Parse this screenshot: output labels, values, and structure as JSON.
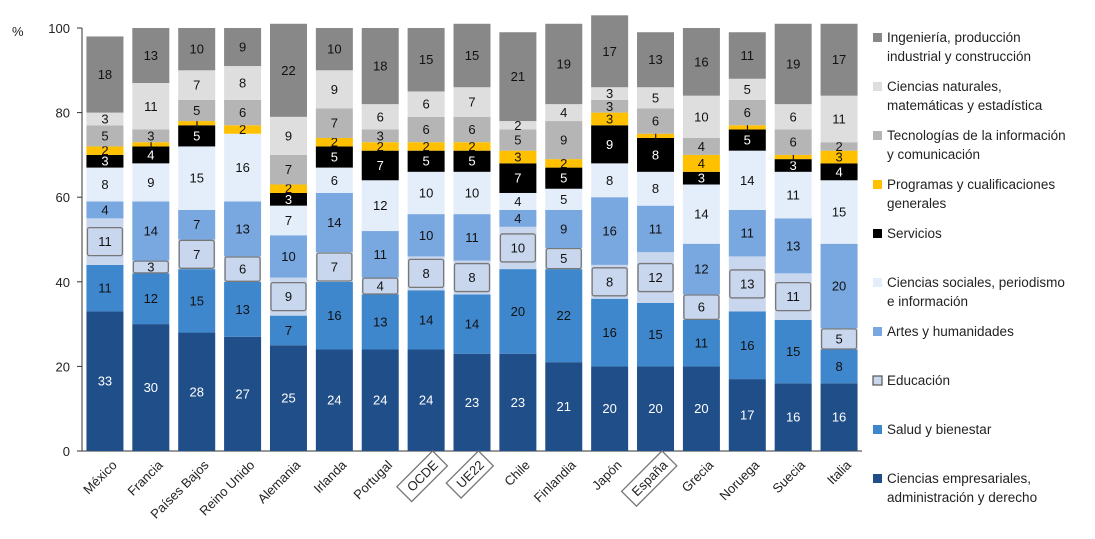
{
  "chart_data": {
    "type": "bar",
    "stacked": true,
    "y_unit": "%",
    "ylim": [
      0,
      100
    ],
    "yticks": [
      0,
      20,
      40,
      60,
      80,
      100
    ],
    "grid": false,
    "legend_position": "right",
    "categories": [
      "México",
      "Francia",
      "Países Bajos",
      "Reino Unido",
      "Alemania",
      "Irlanda",
      "Portugal",
      "OCDE",
      "UE22",
      "Chile",
      "Finlandia",
      "Japón",
      "España",
      "Grecia",
      "Noruega",
      "Suecia",
      "Italia"
    ],
    "boxed_categories": [
      "OCDE",
      "UE22",
      "España"
    ],
    "series": [
      {
        "name": "Ciencias empresariales, administración y derecho",
        "color": "#1f4e89",
        "label_color": "#ffffff",
        "values": [
          33,
          30,
          28,
          27,
          25,
          24,
          24,
          24,
          23,
          23,
          21,
          20,
          20,
          20,
          17,
          16,
          16
        ]
      },
      {
        "name": "Salud y bienestar",
        "color": "#3e87cd",
        "label_color": "#111111",
        "values": [
          11,
          12,
          15,
          13,
          7,
          16,
          13,
          14,
          14,
          20,
          22,
          16,
          15,
          11,
          16,
          15,
          8
        ]
      },
      {
        "name": "Educación",
        "color": "#c9d7ee",
        "label_color": "#111111",
        "boxed": true,
        "values": [
          11,
          3,
          7,
          6,
          9,
          7,
          4,
          8,
          8,
          10,
          5,
          8,
          12,
          6,
          13,
          11,
          5
        ]
      },
      {
        "name": "Artes y humanidades",
        "color": "#79a7e0",
        "label_color": "#111111",
        "values": [
          4,
          14,
          7,
          13,
          10,
          14,
          11,
          10,
          11,
          4,
          9,
          16,
          11,
          12,
          11,
          13,
          20
        ]
      },
      {
        "name": "Ciencias sociales, periodismo e información",
        "color": "#e4eefa",
        "label_color": "#111111",
        "values": [
          8,
          9,
          15,
          16,
          7,
          6,
          12,
          10,
          10,
          4,
          5,
          8,
          8,
          14,
          14,
          11,
          15
        ]
      },
      {
        "name": "Servicios",
        "color": "#000000",
        "label_color": "#ffffff",
        "values": [
          3,
          4,
          5,
          0,
          3,
          5,
          7,
          5,
          5,
          7,
          5,
          9,
          8,
          3,
          5,
          3,
          4
        ]
      },
      {
        "name": "Programas y cualificaciones generales",
        "color": "#ffc000",
        "label_color": "#111111",
        "values": [
          2,
          1,
          1,
          2,
          2,
          2,
          2,
          2,
          2,
          3,
          2,
          3,
          1,
          4,
          1,
          1,
          3
        ]
      },
      {
        "name": "Tecnologías de la información y comunicación",
        "color": "#b5b5b5",
        "label_color": "#111111",
        "values": [
          5,
          3,
          5,
          6,
          7,
          7,
          3,
          6,
          6,
          5,
          9,
          3,
          6,
          4,
          6,
          6,
          2
        ]
      },
      {
        "name": "Ciencias naturales, matemáticas y estadística",
        "color": "#dedede",
        "label_color": "#111111",
        "values": [
          3,
          11,
          7,
          8,
          9,
          9,
          6,
          6,
          7,
          2,
          4,
          3,
          5,
          10,
          5,
          6,
          11
        ]
      },
      {
        "name": "Ingeniería, producción industrial y construcción",
        "color": "#888888",
        "label_color": "#111111",
        "values": [
          18,
          13,
          10,
          9,
          22,
          10,
          18,
          15,
          15,
          21,
          19,
          17,
          13,
          16,
          11,
          19,
          17
        ]
      }
    ]
  }
}
